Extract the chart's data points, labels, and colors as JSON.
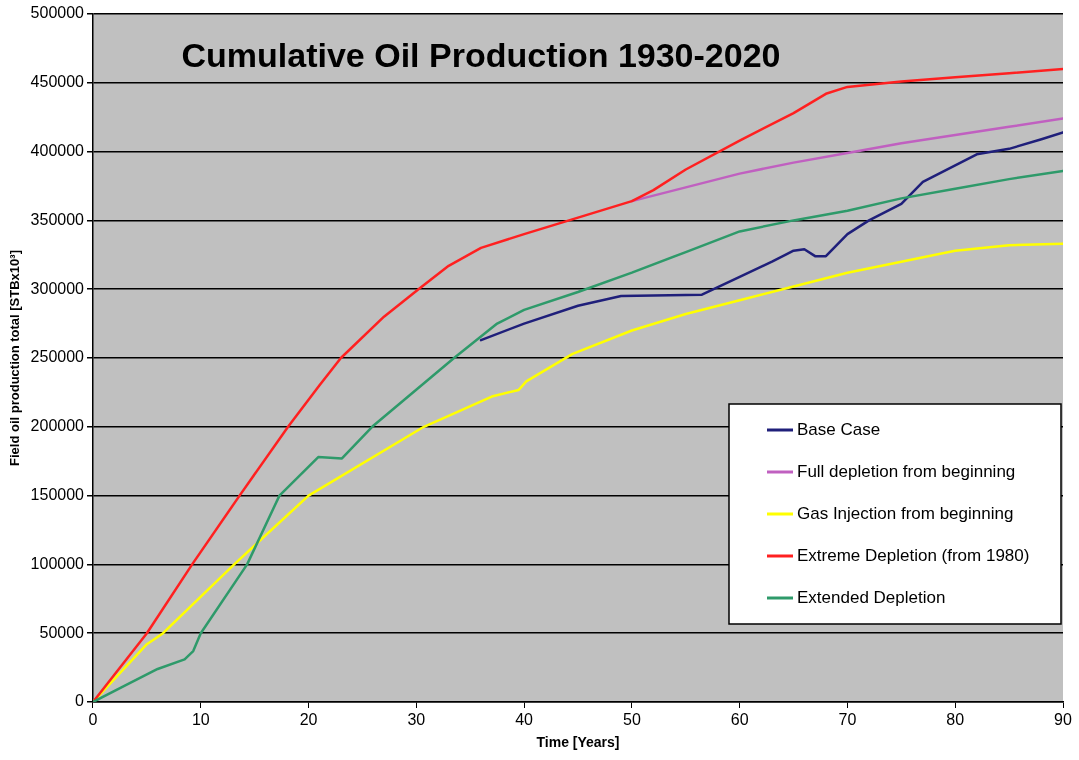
{
  "chart_data": {
    "type": "line",
    "title": "Cumulative Oil Production 1930-2020",
    "xlabel": "Time [Years]",
    "ylabel": "Field oil production total [STBx10³]",
    "xlim": [
      0,
      90
    ],
    "xticks": [
      0,
      10,
      20,
      30,
      40,
      50,
      60,
      70,
      80,
      90
    ],
    "ylim": [
      0,
      500000
    ],
    "yticks": [
      0,
      50000,
      100000,
      150000,
      200000,
      250000,
      300000,
      350000,
      400000,
      450000,
      500000
    ],
    "grid": "y",
    "legend": "bottom right",
    "marker": "none",
    "line_style": "solid",
    "series": [
      {
        "name": "Base Case",
        "color": "#1f1f7a",
        "x": [
          36,
          40,
          45,
          49,
          56.5,
          60,
          63,
          65,
          66,
          67,
          68,
          70,
          72,
          75,
          77,
          80,
          82,
          85,
          88,
          90
        ],
        "values": [
          263000,
          275000,
          288000,
          295000,
          296000,
          309000,
          320000,
          328000,
          329000,
          324000,
          324000,
          340000,
          350000,
          362000,
          378000,
          390000,
          398000,
          402000,
          409000,
          414000
        ]
      },
      {
        "name": "Full depletion from beginning",
        "color": "#c060c0",
        "x": [
          50,
          52,
          55,
          60,
          65,
          70,
          75,
          80,
          85,
          90
        ],
        "values": [
          364000,
          368000,
          374000,
          384000,
          392000,
          399000,
          406000,
          412000,
          418000,
          424000
        ]
      },
      {
        "name": "Gas Injection from beginning",
        "color": "#ffff00",
        "x": [
          0,
          5,
          6.5,
          13.1,
          20,
          30.7,
          37,
          39.5,
          40.2,
          44.5,
          50,
          55,
          60,
          65,
          70,
          75,
          80,
          85,
          90
        ],
        "values": [
          0,
          42000,
          50000,
          100000,
          150000,
          200000,
          222000,
          226800,
          233000,
          253000,
          270000,
          282000,
          292000,
          302000,
          312000,
          320000,
          328000,
          332000,
          333000
        ]
      },
      {
        "name": "Extreme Depletion (from 1980)",
        "color": "#ff2020",
        "x": [
          0,
          2,
          5,
          9.2,
          13.6,
          18.1,
          21,
          23,
          27,
          30.2,
          33,
          36,
          40,
          45,
          50,
          52,
          55,
          60,
          65,
          68,
          70,
          75,
          80,
          85,
          90
        ],
        "values": [
          0,
          20000,
          50000,
          100000,
          150000,
          200000,
          230000,
          250000,
          280000,
          300000,
          317000,
          330000,
          340000,
          352000,
          364000,
          372000,
          387000,
          408000,
          428000,
          442000,
          447000,
          451000,
          454000,
          457000,
          460000
        ]
      },
      {
        "name": "Extended Depletion",
        "color": "#2e9a6a",
        "x": [
          0,
          3,
          6,
          8.5,
          9.3,
          10,
          14.3,
          17.3,
          20.9,
          23.1,
          25.9,
          33.5,
          37.5,
          40,
          45,
          50,
          55,
          60,
          65,
          70,
          75,
          80,
          85,
          90
        ],
        "values": [
          0,
          12000,
          24000,
          31000,
          37000,
          50000,
          100000,
          150000,
          178000,
          177000,
          200000,
          250000,
          275000,
          285000,
          298000,
          312000,
          327000,
          342000,
          350000,
          357000,
          366000,
          373000,
          380000,
          386000
        ]
      }
    ]
  }
}
